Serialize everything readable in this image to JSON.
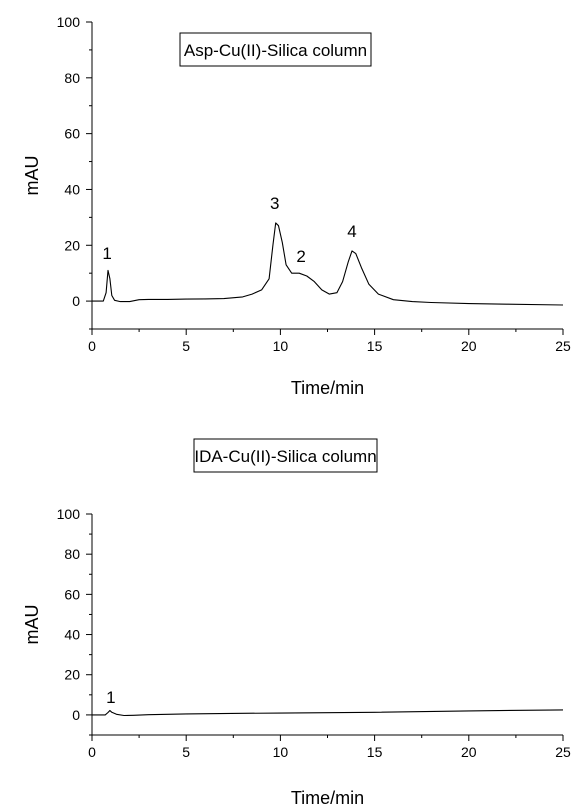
{
  "chart_data": [
    {
      "type": "line",
      "panel": "top",
      "legend": "Asp-Cu(II)-Silica column",
      "xlabel": "Time/min",
      "ylabel": "mAU",
      "xlim": [
        0,
        25
      ],
      "ylim": [
        -10,
        100
      ],
      "xticks": [
        "0",
        "5",
        "10",
        "15",
        "20",
        "25"
      ],
      "yticks": [
        "0",
        "20",
        "40",
        "60",
        "80",
        "100"
      ],
      "annotations": [
        {
          "text": "1",
          "x": 0.8,
          "y": 15
        },
        {
          "text": "3",
          "x": 9.7,
          "y": 33
        },
        {
          "text": "2",
          "x": 11.1,
          "y": 14
        },
        {
          "text": "4",
          "x": 13.8,
          "y": 23
        }
      ],
      "series": [
        {
          "x": [
            0,
            0.6,
            0.75,
            0.85,
            0.95,
            1.05,
            1.2,
            1.5,
            2.0,
            2.5,
            3,
            4,
            5,
            6,
            7,
            8,
            8.5,
            9.0,
            9.4,
            9.6,
            9.75,
            9.9,
            10.1,
            10.3,
            10.6,
            11.0,
            11.4,
            11.8,
            12.2,
            12.6,
            13.0,
            13.3,
            13.6,
            13.8,
            14.0,
            14.3,
            14.7,
            15.2,
            16,
            17,
            18,
            20,
            22,
            25
          ],
          "y": [
            0,
            0,
            3,
            11,
            8,
            2,
            0.3,
            -0.2,
            -0.2,
            0.5,
            0.6,
            0.6,
            0.7,
            0.8,
            0.9,
            1.5,
            2.5,
            4,
            8,
            20,
            28,
            27,
            21,
            13,
            10,
            10,
            9,
            7,
            4,
            2.5,
            3,
            7,
            14,
            18,
            17,
            12,
            6,
            2.5,
            0.5,
            -0.2,
            -0.5,
            -0.9,
            -1.1,
            -1.4
          ]
        }
      ]
    },
    {
      "type": "line",
      "panel": "bottom",
      "legend": "IDA-Cu(II)-Silica column",
      "xlabel": "Time/min",
      "ylabel": "mAU",
      "xlim": [
        0,
        25
      ],
      "ylim": [
        -10,
        100
      ],
      "xticks": [
        "0",
        "5",
        "10",
        "15",
        "20",
        "25"
      ],
      "yticks": [
        "0",
        "20",
        "40",
        "60",
        "80",
        "100"
      ],
      "annotations": [
        {
          "text": "1",
          "x": 1.0,
          "y": 6
        }
      ],
      "series": [
        {
          "x": [
            0,
            0.7,
            0.85,
            0.95,
            1.05,
            1.3,
            1.7,
            2.2,
            3,
            5,
            8,
            10,
            15,
            20,
            25
          ],
          "y": [
            0,
            0,
            1.2,
            2.2,
            1.3,
            0.3,
            -0.3,
            -0.2,
            0.1,
            0.5,
            0.8,
            0.9,
            1.3,
            2.0,
            2.5
          ]
        }
      ]
    }
  ]
}
